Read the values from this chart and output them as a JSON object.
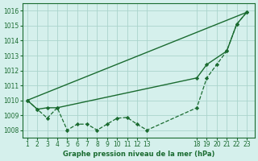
{
  "bg_color": "#d5f0ec",
  "grid_color": "#aad4cc",
  "line_color": "#1a6b30",
  "xlabel": "Graphe pression niveau de la mer (hPa)",
  "ylim": [
    1007.5,
    1016.5
  ],
  "xlim": [
    0.5,
    23.8
  ],
  "yticks": [
    1008,
    1009,
    1010,
    1011,
    1012,
    1013,
    1014,
    1015,
    1016
  ],
  "xtick_positions": [
    1,
    2,
    3,
    4,
    5,
    6,
    7,
    8,
    9,
    10,
    11,
    12,
    13,
    18,
    19,
    20,
    21,
    22,
    23
  ],
  "xtick_labels": [
    "1",
    "2",
    "3",
    "4",
    "5",
    "6",
    "7",
    "8",
    "9",
    "10",
    "11",
    "12",
    "13",
    "18",
    "19",
    "20",
    "21",
    "22",
    "23"
  ],
  "line_solid_straight": {
    "x": [
      1,
      23
    ],
    "y": [
      1010.0,
      1015.9
    ]
  },
  "line_solid_markers": {
    "x": [
      1,
      2,
      3,
      4,
      18,
      19,
      21,
      22,
      23
    ],
    "y": [
      1010.0,
      1009.4,
      1009.5,
      1009.5,
      1011.5,
      1012.4,
      1013.3,
      1015.1,
      1015.9
    ]
  },
  "line_dashed_markers": {
    "x": [
      1,
      2,
      3,
      4,
      5,
      6,
      7,
      8,
      9,
      10,
      11,
      12,
      13,
      18,
      19,
      20,
      21,
      22,
      23
    ],
    "y": [
      1010.0,
      1009.4,
      1008.8,
      1009.5,
      1008.0,
      1008.4,
      1008.4,
      1008.0,
      1008.4,
      1008.8,
      1008.85,
      1008.4,
      1008.0,
      1009.5,
      1011.5,
      1012.4,
      1013.3,
      1015.1,
      1015.9
    ]
  }
}
